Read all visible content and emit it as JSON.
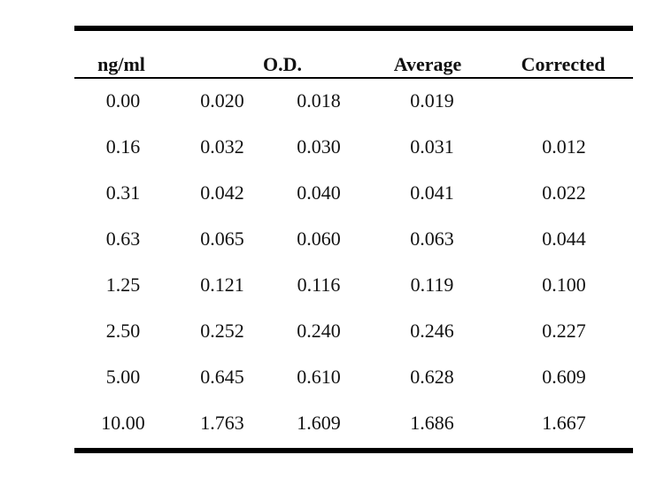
{
  "table": {
    "headers": {
      "conc": "ng/ml",
      "od": "O.D.",
      "average": "Average",
      "corrected": "Corrected"
    },
    "rows": [
      [
        "0.00",
        "0.020",
        "0.018",
        "0.019",
        ""
      ],
      [
        "0.16",
        "0.032",
        "0.030",
        "0.031",
        "0.012"
      ],
      [
        "0.31",
        "0.042",
        "0.040",
        "0.041",
        "0.022"
      ],
      [
        "0.63",
        "0.065",
        "0.060",
        "0.063",
        "0.044"
      ],
      [
        "1.25",
        "0.121",
        "0.116",
        "0.119",
        "0.100"
      ],
      [
        "2.50",
        "0.252",
        "0.240",
        "0.246",
        "0.227"
      ],
      [
        "5.00",
        "0.645",
        "0.610",
        "0.628",
        "0.609"
      ],
      [
        "10.00",
        "1.763",
        "1.609",
        "1.686",
        "1.667"
      ]
    ]
  }
}
